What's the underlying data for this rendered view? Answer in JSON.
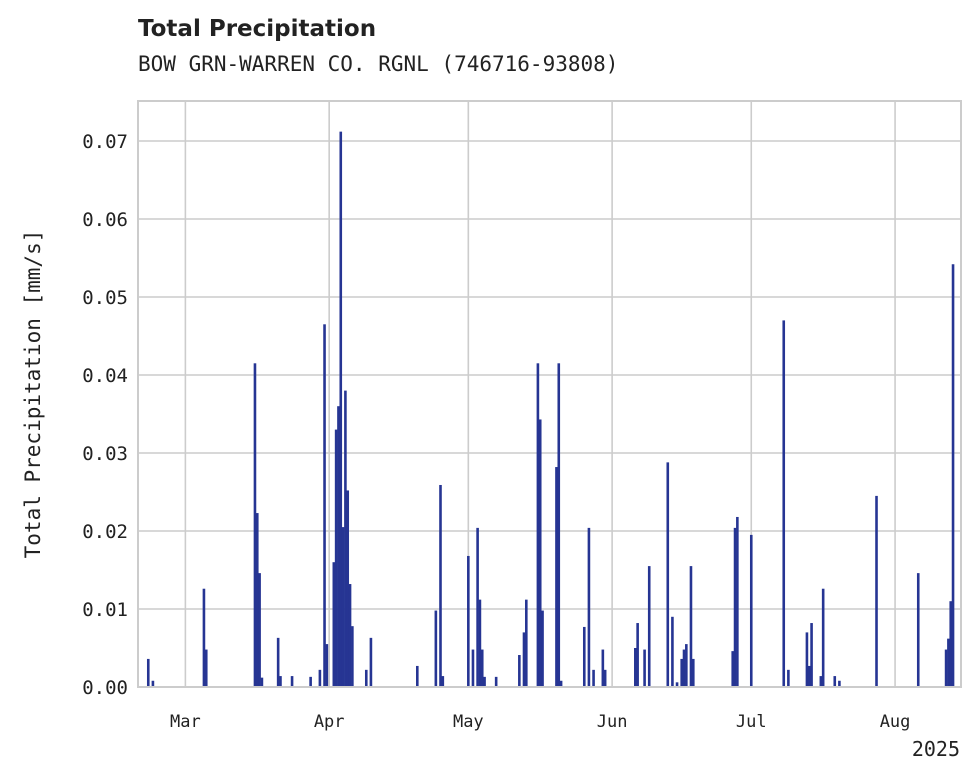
{
  "chart_data": {
    "type": "bar",
    "title": "Total Precipitation",
    "subtitle": "BOW GRN-WARREN CO. RGNL (746716-93808)",
    "ylabel": "Total Precipitation [mm/s]",
    "xlabel": "",
    "ylim": [
      0,
      0.075
    ],
    "xlim": [
      "2025-02-19",
      "2025-08-15"
    ],
    "year_label": "2025",
    "grid": true,
    "color": "#263593",
    "yticks": [
      {
        "value": 0.0,
        "label": "0.00"
      },
      {
        "value": 0.01,
        "label": "0.01"
      },
      {
        "value": 0.02,
        "label": "0.02"
      },
      {
        "value": 0.03,
        "label": "0.03"
      },
      {
        "value": 0.04,
        "label": "0.04"
      },
      {
        "value": 0.05,
        "label": "0.05"
      },
      {
        "value": 0.06,
        "label": "0.06"
      },
      {
        "value": 0.07,
        "label": "0.07"
      }
    ],
    "xticks": [
      {
        "date": "2025-03-01",
        "label": "Mar"
      },
      {
        "date": "2025-04-01",
        "label": "Apr"
      },
      {
        "date": "2025-05-01",
        "label": "May"
      },
      {
        "date": "2025-06-01",
        "label": "Jun"
      },
      {
        "date": "2025-07-01",
        "label": "Jul"
      },
      {
        "date": "2025-08-01",
        "label": "Aug"
      }
    ],
    "bars": [
      {
        "date": "2025-02-21",
        "value": 0.0036
      },
      {
        "date": "2025-02-22",
        "value": 0.0008
      },
      {
        "date": "2025-03-05",
        "value": 0.0126
      },
      {
        "date": "2025-03-05T12",
        "value": 0.0048
      },
      {
        "date": "2025-03-16",
        "value": 0.0415
      },
      {
        "date": "2025-03-16T12",
        "value": 0.0223
      },
      {
        "date": "2025-03-17",
        "value": 0.0146
      },
      {
        "date": "2025-03-17T12",
        "value": 0.0012
      },
      {
        "date": "2025-03-21",
        "value": 0.0063
      },
      {
        "date": "2025-03-21T12",
        "value": 0.0014
      },
      {
        "date": "2025-03-24",
        "value": 0.0014
      },
      {
        "date": "2025-03-28",
        "value": 0.0013
      },
      {
        "date": "2025-03-30",
        "value": 0.0022
      },
      {
        "date": "2025-03-31",
        "value": 0.0465
      },
      {
        "date": "2025-03-31T12",
        "value": 0.0055
      },
      {
        "date": "2025-04-02",
        "value": 0.016
      },
      {
        "date": "2025-04-02T12",
        "value": 0.033
      },
      {
        "date": "2025-04-03",
        "value": 0.036
      },
      {
        "date": "2025-04-03T12",
        "value": 0.0712
      },
      {
        "date": "2025-04-04",
        "value": 0.0205
      },
      {
        "date": "2025-04-04T12",
        "value": 0.038
      },
      {
        "date": "2025-04-05",
        "value": 0.0252
      },
      {
        "date": "2025-04-05T12",
        "value": 0.0132
      },
      {
        "date": "2025-04-06",
        "value": 0.0078
      },
      {
        "date": "2025-04-09",
        "value": 0.0022
      },
      {
        "date": "2025-04-10",
        "value": 0.0063
      },
      {
        "date": "2025-04-20",
        "value": 0.0027
      },
      {
        "date": "2025-04-24",
        "value": 0.0098
      },
      {
        "date": "2025-04-25",
        "value": 0.0259
      },
      {
        "date": "2025-04-25T12",
        "value": 0.0014
      },
      {
        "date": "2025-05-01",
        "value": 0.0168
      },
      {
        "date": "2025-05-02",
        "value": 0.0048
      },
      {
        "date": "2025-05-03",
        "value": 0.0204
      },
      {
        "date": "2025-05-03T12",
        "value": 0.0112
      },
      {
        "date": "2025-05-04",
        "value": 0.0048
      },
      {
        "date": "2025-05-04T12",
        "value": 0.0013
      },
      {
        "date": "2025-05-07",
        "value": 0.0013
      },
      {
        "date": "2025-05-12",
        "value": 0.0041
      },
      {
        "date": "2025-05-13",
        "value": 0.007
      },
      {
        "date": "2025-05-13T12",
        "value": 0.0112
      },
      {
        "date": "2025-05-16",
        "value": 0.0415
      },
      {
        "date": "2025-05-16T12",
        "value": 0.0343
      },
      {
        "date": "2025-05-17",
        "value": 0.0098
      },
      {
        "date": "2025-05-20",
        "value": 0.0282
      },
      {
        "date": "2025-05-20T12",
        "value": 0.0415
      },
      {
        "date": "2025-05-21",
        "value": 0.0008
      },
      {
        "date": "2025-05-26",
        "value": 0.0077
      },
      {
        "date": "2025-05-27",
        "value": 0.0204
      },
      {
        "date": "2025-05-28",
        "value": 0.0022
      },
      {
        "date": "2025-05-30",
        "value": 0.0048
      },
      {
        "date": "2025-05-30T12",
        "value": 0.0022
      },
      {
        "date": "2025-06-06",
        "value": 0.005
      },
      {
        "date": "2025-06-06T12",
        "value": 0.0082
      },
      {
        "date": "2025-06-08",
        "value": 0.0048
      },
      {
        "date": "2025-06-09",
        "value": 0.0155
      },
      {
        "date": "2025-06-13",
        "value": 0.0288
      },
      {
        "date": "2025-06-14",
        "value": 0.009
      },
      {
        "date": "2025-06-15",
        "value": 0.0006
      },
      {
        "date": "2025-06-16",
        "value": 0.0036
      },
      {
        "date": "2025-06-16T12",
        "value": 0.0048
      },
      {
        "date": "2025-06-17",
        "value": 0.0055
      },
      {
        "date": "2025-06-18",
        "value": 0.0155
      },
      {
        "date": "2025-06-18T12",
        "value": 0.0036
      },
      {
        "date": "2025-06-27",
        "value": 0.0046
      },
      {
        "date": "2025-06-27T12",
        "value": 0.0204
      },
      {
        "date": "2025-06-28",
        "value": 0.0218
      },
      {
        "date": "2025-07-01",
        "value": 0.0195
      },
      {
        "date": "2025-07-08",
        "value": 0.047
      },
      {
        "date": "2025-07-09",
        "value": 0.0022
      },
      {
        "date": "2025-07-13",
        "value": 0.007
      },
      {
        "date": "2025-07-13T12",
        "value": 0.0027
      },
      {
        "date": "2025-07-14",
        "value": 0.0082
      },
      {
        "date": "2025-07-16",
        "value": 0.0014
      },
      {
        "date": "2025-07-16T12",
        "value": 0.0126
      },
      {
        "date": "2025-07-19",
        "value": 0.0014
      },
      {
        "date": "2025-07-20",
        "value": 0.0008
      },
      {
        "date": "2025-07-28",
        "value": 0.0245
      },
      {
        "date": "2025-08-06",
        "value": 0.0146
      },
      {
        "date": "2025-08-12",
        "value": 0.0048
      },
      {
        "date": "2025-08-12T12",
        "value": 0.0062
      },
      {
        "date": "2025-08-13",
        "value": 0.011
      },
      {
        "date": "2025-08-13T12",
        "value": 0.0542
      }
    ]
  }
}
